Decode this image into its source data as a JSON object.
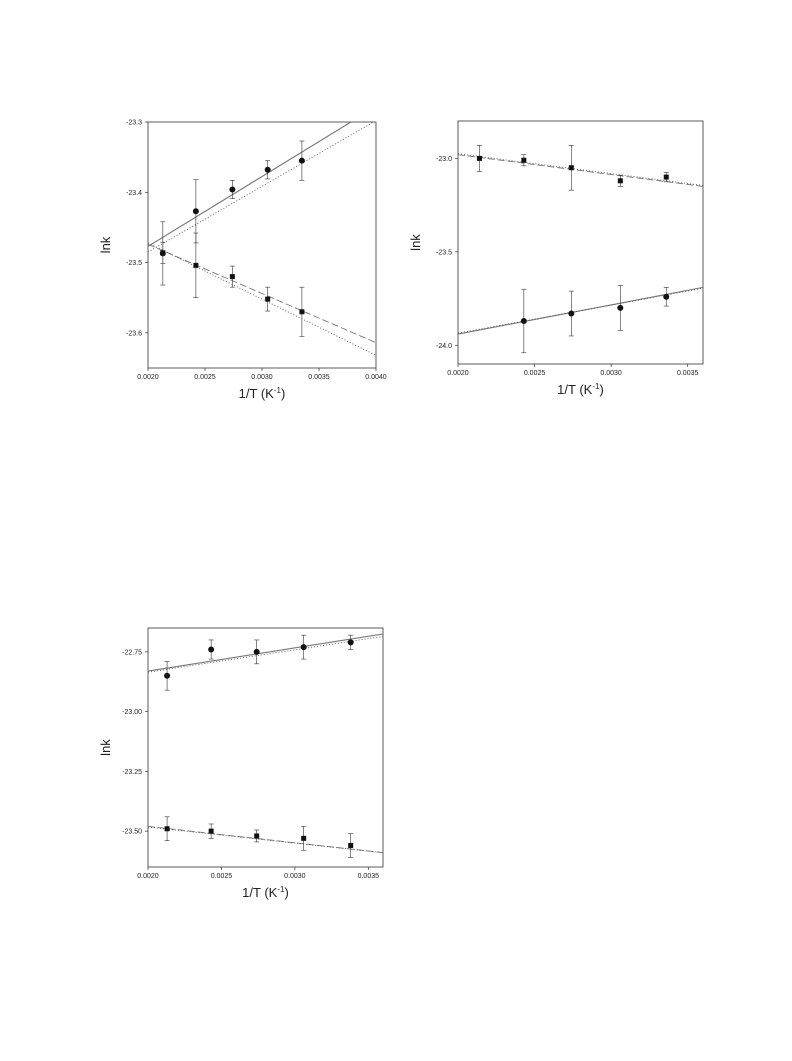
{
  "chart_data": [
    {
      "type": "scatter",
      "xlabel": "1/T (K-1)",
      "ylabel": "lnk",
      "xlim": [
        0.002,
        0.004
      ],
      "ylim": [
        -23.65,
        -23.3
      ],
      "xticks": [
        "0.0020",
        "0.0025",
        "0.0030",
        "0.0035",
        "0.0040"
      ],
      "yticks": [
        "-23.3",
        "-23.4",
        "-23.5",
        "-23.6"
      ],
      "series": [
        {
          "marker": "circle",
          "x": [
            0.00213,
            0.00242,
            0.00274,
            0.00305,
            0.00335
          ],
          "y": [
            -23.487,
            -23.427,
            -23.396,
            -23.368,
            -23.355
          ],
          "err": [
            0.045,
            0.045,
            0.013,
            0.013,
            0.028
          ],
          "lines": [
            {
              "style": "solid",
              "x": [
                0.002,
                0.00378
              ],
              "y": [
                -23.477,
                -23.3
              ]
            },
            {
              "style": "dotted",
              "x": [
                0.002,
                0.004
              ],
              "y": [
                -23.485,
                -23.298
              ]
            }
          ]
        },
        {
          "marker": "square",
          "x": [
            0.00213,
            0.00242,
            0.00274,
            0.00305,
            0.00335
          ],
          "y": [
            -23.486,
            -23.504,
            -23.52,
            -23.552,
            -23.57
          ],
          "err": [
            0.015,
            0.046,
            0.015,
            0.017,
            0.035
          ],
          "lines": [
            {
              "style": "dashed",
              "x": [
                0.002,
                0.004
              ],
              "y": [
                -23.474,
                -23.614
              ]
            },
            {
              "style": "dotted",
              "x": [
                0.002,
                0.004
              ],
              "y": [
                -23.472,
                -23.632
              ]
            }
          ]
        }
      ]
    },
    {
      "type": "scatter",
      "xlabel": "1/T (K-1)",
      "ylabel": "lnk",
      "xlim": [
        0.002,
        0.0036
      ],
      "ylim": [
        -24.1,
        -22.8
      ],
      "xticks": [
        "0.0020",
        "0.0025",
        "0.0030",
        "0.0035"
      ],
      "yticks": [
        "-23.0",
        "-23.5",
        "-24.0"
      ],
      "series": [
        {
          "marker": "square",
          "x": [
            0.00214,
            0.00243,
            0.00274,
            0.00306,
            0.00336
          ],
          "y": [
            -23.0,
            -23.01,
            -23.05,
            -23.12,
            -23.1
          ],
          "err": [
            0.07,
            0.03,
            0.12,
            0.03,
            0.025
          ],
          "lines": [
            {
              "style": "dashed",
              "x": [
                0.002,
                0.0036
              ],
              "y": [
                -22.98,
                -23.15
              ]
            },
            {
              "style": "dotted",
              "x": [
                0.002,
                0.0036
              ],
              "y": [
                -22.975,
                -23.145
              ]
            }
          ]
        },
        {
          "marker": "circle",
          "x": [
            0.00243,
            0.00274,
            0.00306,
            0.00336
          ],
          "y": [
            -23.87,
            -23.83,
            -23.8,
            -23.74
          ],
          "err": [
            0.17,
            0.12,
            0.12,
            0.05
          ],
          "lines": [
            {
              "style": "solid",
              "x": [
                0.002,
                0.0036
              ],
              "y": [
                -23.94,
                -23.69
              ]
            },
            {
              "style": "dotted",
              "x": [
                0.002,
                0.0036
              ],
              "y": [
                -23.935,
                -23.695
              ]
            }
          ]
        }
      ]
    },
    {
      "type": "scatter",
      "xlabel": "1/T (K-1)",
      "ylabel": "lnk",
      "xlim": [
        0.002,
        0.0036
      ],
      "ylim": [
        -23.65,
        -22.65
      ],
      "xticks": [
        "0.0020",
        "0.0025",
        "0.0030",
        "0.0035"
      ],
      "yticks": [
        "-22.75",
        "-23.00",
        "-23.25",
        "-23.50"
      ],
      "series": [
        {
          "marker": "circle",
          "x": [
            0.00213,
            0.00243,
            0.00274,
            0.00306,
            0.00338
          ],
          "y": [
            -22.85,
            -22.74,
            -22.75,
            -22.73,
            -22.71
          ],
          "err": [
            0.06,
            0.04,
            0.05,
            0.05,
            0.03
          ],
          "lines": [
            {
              "style": "solid",
              "x": [
                0.002,
                0.0036
              ],
              "y": [
                -22.83,
                -22.675
              ]
            },
            {
              "style": "dotted",
              "x": [
                0.002,
                0.0036
              ],
              "y": [
                -22.835,
                -22.685
              ]
            }
          ]
        },
        {
          "marker": "square",
          "x": [
            0.00213,
            0.00243,
            0.00274,
            0.00306,
            0.00338
          ],
          "y": [
            -23.49,
            -23.5,
            -23.52,
            -23.53,
            -23.56
          ],
          "err": [
            0.05,
            0.03,
            0.025,
            0.05,
            0.05
          ],
          "lines": [
            {
              "style": "dashed",
              "x": [
                0.002,
                0.0036
              ],
              "y": [
                -23.48,
                -23.59
              ]
            },
            {
              "style": "dotted",
              "x": [
                0.002,
                0.0036
              ],
              "y": [
                -23.483,
                -23.59
              ]
            }
          ]
        }
      ]
    }
  ]
}
